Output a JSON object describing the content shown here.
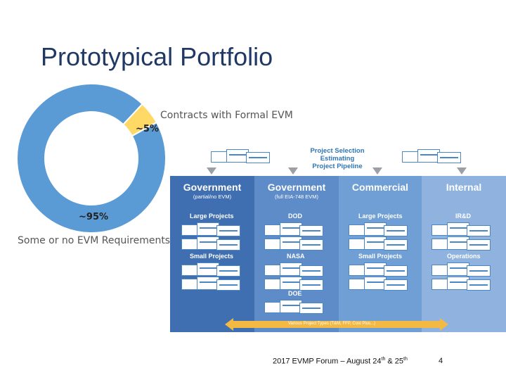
{
  "title": "Prototypical Portfolio",
  "chart_data": {
    "type": "pie",
    "categories": [
      "Contracts with Formal EVM",
      "Some or no EVM Requirements"
    ],
    "values": [
      5,
      95
    ],
    "data_labels": [
      "~5%",
      "~95%"
    ],
    "colors": [
      "#ffd966",
      "#5b9bd5"
    ]
  },
  "labels": {
    "evm": "Contracts with Formal EVM",
    "pct5": "~5%",
    "pct95": "~95%",
    "some": "Some or no EVM Requirements"
  },
  "diagram": {
    "project_selection": [
      "Project Selection",
      "Estimating",
      "Project Pipeline"
    ],
    "columns": [
      {
        "title": "Government",
        "subtitle": "(partial/no EVM)",
        "color": "#3f6fb0",
        "categories": [
          "Large Projects",
          "Small Projects"
        ]
      },
      {
        "title": "Government",
        "subtitle": "(full EIA-748 EVM)",
        "color": "#5d8cc8",
        "categories": [
          "DOD",
          "NASA",
          "DOE"
        ]
      },
      {
        "title": "Commercial",
        "subtitle": "",
        "color": "#6f9fd4",
        "categories": [
          "Large Projects",
          "Small Projects"
        ]
      },
      {
        "title": "Internal",
        "subtitle": "",
        "color": "#8fb3de",
        "categories": [
          "IR&D",
          "Operations"
        ]
      }
    ],
    "bar_label": "Various Project Types (T&M, FFP, Cost Plus...)"
  },
  "footer": {
    "text_a": "2017 EVMP Forum – August 24",
    "sup_a": "th",
    "text_b": " & 25",
    "sup_b": "th",
    "page": "4"
  }
}
